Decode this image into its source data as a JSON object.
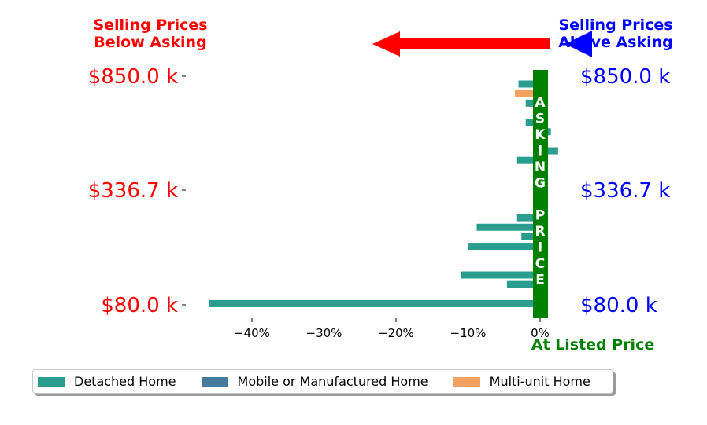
{
  "chart_data": {
    "type": "bar",
    "orientation": "horizontal",
    "y_tick_labels": [
      "$850.0 k",
      "$336.7 k",
      "$80.0 k"
    ],
    "x_ticks": [
      -40,
      -30,
      -20,
      -10,
      0
    ],
    "x_tick_labels": [
      "−40%",
      "−30%",
      "−20%",
      "−10%",
      "0%"
    ],
    "xlim": [
      -47.5,
      2.8
    ],
    "annotations": {
      "below_asking": [
        "Selling Prices",
        "Below Asking"
      ],
      "above_asking": [
        "Selling Prices",
        "Above Asking"
      ],
      "at_listed": "At Listed Price",
      "asking_price_letters": [
        "A",
        "S",
        "K",
        "I",
        "N",
        "G",
        " ",
        "P",
        "R",
        "I",
        "C",
        "E"
      ]
    },
    "colors": {
      "below": "#ff0000",
      "above": "#0000ff",
      "listed": "#008000",
      "detached": "#2a9d8f",
      "mobile": "#457b9d",
      "multi": "#f4a261"
    },
    "series": [
      {
        "name": "Detached Home",
        "color": "#2a9d8f"
      },
      {
        "name": "Mobile or Manufactured Home",
        "color": "#457b9d"
      },
      {
        "name": "Multi-unit Home",
        "color": "#f4a261"
      }
    ],
    "bars": [
      {
        "series": 0,
        "value": -3.0,
        "slot": 0
      },
      {
        "series": 2,
        "value": -3.5,
        "slot": 1
      },
      {
        "series": 0,
        "value": -2.0,
        "slot": 2
      },
      {
        "series": 0,
        "value": -2.0,
        "slot": 4
      },
      {
        "series": 0,
        "value": 1.5,
        "slot": 5
      },
      {
        "series": 0,
        "value": 2.5,
        "slot": 7
      },
      {
        "series": 0,
        "value": -3.2,
        "slot": 8
      },
      {
        "series": 0,
        "value": 0.8,
        "slot": 12
      },
      {
        "series": 0,
        "value": -3.2,
        "slot": 14
      },
      {
        "series": 0,
        "value": -8.8,
        "slot": 15
      },
      {
        "series": 0,
        "value": -2.6,
        "slot": 16
      },
      {
        "series": 0,
        "value": -10.0,
        "slot": 17
      },
      {
        "series": 0,
        "value": -11.0,
        "slot": 20
      },
      {
        "series": 0,
        "value": -4.6,
        "slot": 21
      },
      {
        "series": 0,
        "value": 0.8,
        "slot": 22
      },
      {
        "series": 0,
        "value": -46.0,
        "slot": 23
      }
    ],
    "slot_count": 24,
    "legend_placement": "bottom",
    "grid": false
  }
}
